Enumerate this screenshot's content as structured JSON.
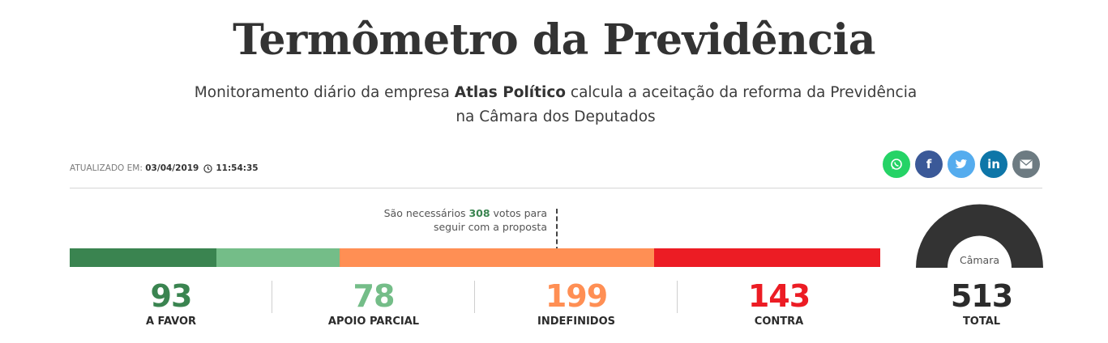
{
  "header": {
    "title": "Termômetro da Previdência",
    "subtitle_part1": "Monitoramento diário da empresa ",
    "subtitle_bold": "Atlas Político",
    "subtitle_part2": " calcula a aceitação da reforma da Previdência na Câmara dos Deputados"
  },
  "updated": {
    "label": "ATUALIZADO EM:",
    "date": "03/04/2019",
    "time": "11:54:35"
  },
  "share": [
    {
      "name": "whatsapp",
      "color": "#25d366",
      "icon": "whatsapp-icon"
    },
    {
      "name": "facebook",
      "color": "#3b5998",
      "icon": "facebook-icon",
      "glyph": "f"
    },
    {
      "name": "twitter",
      "color": "#55acee",
      "icon": "twitter-icon"
    },
    {
      "name": "linkedin",
      "color": "#0e76a8",
      "icon": "linkedin-icon",
      "glyph": "in"
    },
    {
      "name": "email",
      "color": "#6d7b82",
      "icon": "email-icon"
    }
  ],
  "threshold": {
    "text_before": "São necessários ",
    "votes": "308",
    "text_after": " votos para",
    "text_line2": "seguir com a proposta",
    "value": 308
  },
  "chart_data": {
    "type": "bar",
    "categories": [
      "A FAVOR",
      "APOIO PARCIAL",
      "INDEFINIDOS",
      "CONTRA"
    ],
    "values": [
      93,
      78,
      199,
      143
    ],
    "colors": [
      "#3a8450",
      "#74bd88",
      "#ff8f54",
      "#ec1c24"
    ],
    "total": 513,
    "total_label": "TOTAL",
    "gauge_label": "Câmara"
  }
}
